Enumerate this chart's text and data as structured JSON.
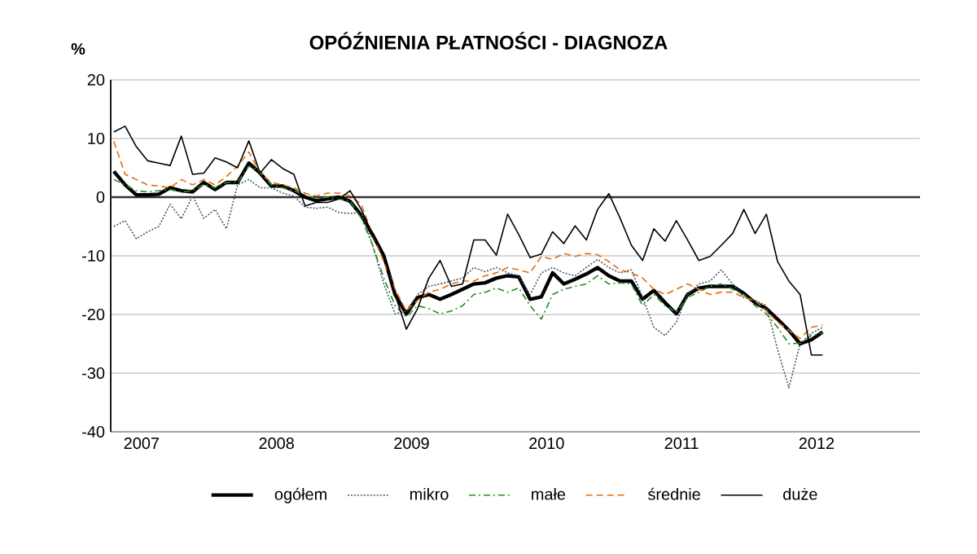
{
  "chart_data": {
    "type": "line",
    "title": "OPÓŹNIENIA PŁATNOŚCI - DIAGNOZA",
    "ylabel": "%",
    "x": [
      "2007-01",
      "2007-02",
      "2007-03",
      "2007-04",
      "2007-05",
      "2007-06",
      "2007-07",
      "2007-08",
      "2007-09",
      "2007-10",
      "2007-11",
      "2007-12",
      "2008-01",
      "2008-02",
      "2008-03",
      "2008-04",
      "2008-05",
      "2008-06",
      "2008-07",
      "2008-08",
      "2008-09",
      "2008-10",
      "2008-11",
      "2008-12",
      "2009-01",
      "2009-02",
      "2009-03",
      "2009-04",
      "2009-05",
      "2009-06",
      "2009-07",
      "2009-08",
      "2009-09",
      "2009-10",
      "2009-11",
      "2009-12",
      "2010-01",
      "2010-02",
      "2010-03",
      "2010-04",
      "2010-05",
      "2010-06",
      "2010-07",
      "2010-08",
      "2010-09",
      "2010-10",
      "2010-11",
      "2010-12",
      "2011-01",
      "2011-02",
      "2011-03",
      "2011-04",
      "2011-05",
      "2011-06",
      "2011-07",
      "2011-08",
      "2011-09",
      "2011-10",
      "2011-11",
      "2011-12",
      "2012-01",
      "2012-02",
      "2012-03",
      "2012-04"
    ],
    "series": [
      {
        "name": "ogółem",
        "color": "#000000",
        "line_style": "solid",
        "values": [
          4.4,
          2.1,
          0.4,
          0.4,
          0.5,
          1.6,
          1.1,
          0.9,
          2.5,
          1.3,
          2.5,
          2.5,
          5.8,
          4.1,
          1.9,
          1.9,
          1.1,
          0,
          -0.6,
          -0.3,
          0,
          -0.7,
          -3.1,
          -6.4,
          -10,
          -16.6,
          -19.9,
          -17.1,
          -16.6,
          -17.4,
          -16.6,
          -15.7,
          -14.8,
          -14.6,
          -13.8,
          -13.4,
          -13.6,
          -17.4,
          -17,
          -12.9,
          -14.8,
          -14,
          -13.1,
          -12,
          -13.4,
          -14.3,
          -14.3,
          -17.4,
          -15.9,
          -18,
          -19.9,
          -16.6,
          -15.5,
          -15.2,
          -15.2,
          -15.2,
          -16.4,
          -18,
          -19,
          -20.8,
          -22.7,
          -25,
          -24.3,
          -23
        ]
      },
      {
        "name": "mikro",
        "color": "#44546a",
        "line_style": "dotted",
        "values": [
          -5,
          -4,
          -7.1,
          -5.9,
          -5,
          -1.2,
          -3.7,
          0.2,
          -3.6,
          -2.1,
          -5.4,
          2.1,
          3,
          1.6,
          1.6,
          0.7,
          0.2,
          -1.7,
          -1.9,
          -1.7,
          -2.6,
          -2.8,
          -2.6,
          -8.2,
          -14.8,
          -19.9,
          -19.4,
          -16.6,
          -15.2,
          -14.8,
          -14.3,
          -13.8,
          -12,
          -12.7,
          -12,
          -12.9,
          -13.4,
          -16.6,
          -12.9,
          -12,
          -12.9,
          -13.4,
          -12,
          -10.6,
          -12,
          -12.9,
          -12.4,
          -17.1,
          -22.2,
          -23.6,
          -21.3,
          -16.6,
          -14.8,
          -14.3,
          -12.4,
          -14.8,
          -17.1,
          -17.6,
          -18.5,
          -26,
          -32.5,
          -25,
          -23.2,
          -22.2
        ]
      },
      {
        "name": "małe",
        "color": "#228b22",
        "line_style": "dashdot",
        "values": [
          3,
          2.1,
          1.1,
          0.9,
          1.1,
          1.3,
          0.9,
          1.1,
          2.2,
          1.6,
          2.5,
          2.5,
          5.3,
          4.4,
          2.1,
          1.6,
          1.1,
          0.4,
          -0.3,
          0,
          -0.3,
          -0.7,
          -3.6,
          -8.2,
          -13.8,
          -18.5,
          -20.4,
          -18.5,
          -19,
          -19.9,
          -19.4,
          -18.5,
          -16.6,
          -16.2,
          -15.5,
          -16.2,
          -15.5,
          -18.5,
          -20.8,
          -16.6,
          -15.7,
          -15.2,
          -14.8,
          -13.4,
          -14.8,
          -14.6,
          -14.8,
          -18.5,
          -16.6,
          -18.5,
          -19.6,
          -17.1,
          -16.2,
          -15.2,
          -14.8,
          -15.7,
          -16.6,
          -18.5,
          -19.9,
          -22.2,
          -25,
          -24.9,
          -23.6,
          -23.2
        ]
      },
      {
        "name": "średnie",
        "color": "#e46c0a",
        "line_style": "dashed",
        "values": [
          9.5,
          3.9,
          3,
          2.1,
          1.9,
          1.6,
          3,
          2.1,
          3,
          2.1,
          3.5,
          5.3,
          7.7,
          4.1,
          2.5,
          2.1,
          1.6,
          0.7,
          0.2,
          0.7,
          0.7,
          0.2,
          -1.2,
          -6.4,
          -11,
          -15.7,
          -19.4,
          -17.6,
          -16.2,
          -15.7,
          -14.8,
          -14.3,
          -14.3,
          -13.4,
          -12.9,
          -12,
          -12.4,
          -12.9,
          -10.1,
          -10.6,
          -9.6,
          -10.1,
          -9.6,
          -9.8,
          -11,
          -12.4,
          -12.9,
          -13.8,
          -15.7,
          -16.6,
          -15.7,
          -14.8,
          -15.7,
          -16.6,
          -16.2,
          -16.2,
          -17.1,
          -17.6,
          -19.4,
          -21.3,
          -22.7,
          -24.1,
          -22.2,
          -21.8
        ]
      },
      {
        "name": "duże",
        "color": "#000000",
        "line_style": "solid",
        "values": [
          11.1,
          12.1,
          8.6,
          6.2,
          5.8,
          5.4,
          10.4,
          3.9,
          4.1,
          6.7,
          6,
          5,
          9.6,
          4.1,
          6.4,
          4.9,
          3.9,
          -1.5,
          -0.9,
          -0.9,
          -0.3,
          1.1,
          -2.1,
          -6.4,
          -10,
          -16.6,
          -22.5,
          -19,
          -13.8,
          -10.8,
          -15.2,
          -14.8,
          -7.3,
          -7.3,
          -9.9,
          -2.9,
          -6.4,
          -10.3,
          -9.7,
          -5.9,
          -7.9,
          -4.9,
          -7.3,
          -2.1,
          0.6,
          -3.6,
          -8.2,
          -10.8,
          -5.4,
          -7.5,
          -4,
          -7.3,
          -10.8,
          -10.1,
          -8.2,
          -6.2,
          -2.1,
          -6.2,
          -2.9,
          -11,
          -14.3,
          -16.6,
          -26.9,
          -26.9
        ]
      }
    ],
    "xlim": [
      "2006-12-23",
      "2012-12-21"
    ],
    "xticks": [
      {
        "value": "2007-03-15",
        "label": "2007"
      },
      {
        "value": "2008-03-15",
        "label": "2008"
      },
      {
        "value": "2009-03-15",
        "label": "2009"
      },
      {
        "value": "2010-03-15",
        "label": "2010"
      },
      {
        "value": "2011-03-15",
        "label": "2011"
      },
      {
        "value": "2012-03-15",
        "label": "2012"
      }
    ],
    "ylim": [
      -40,
      20
    ],
    "yticks": [
      -40,
      -30,
      -20,
      -10,
      0,
      10,
      20
    ],
    "ref_lines": [
      {
        "axis": "y",
        "value": 0,
        "color": "#333333"
      }
    ],
    "grid": "y",
    "legend": "bottom",
    "marker": "none"
  }
}
